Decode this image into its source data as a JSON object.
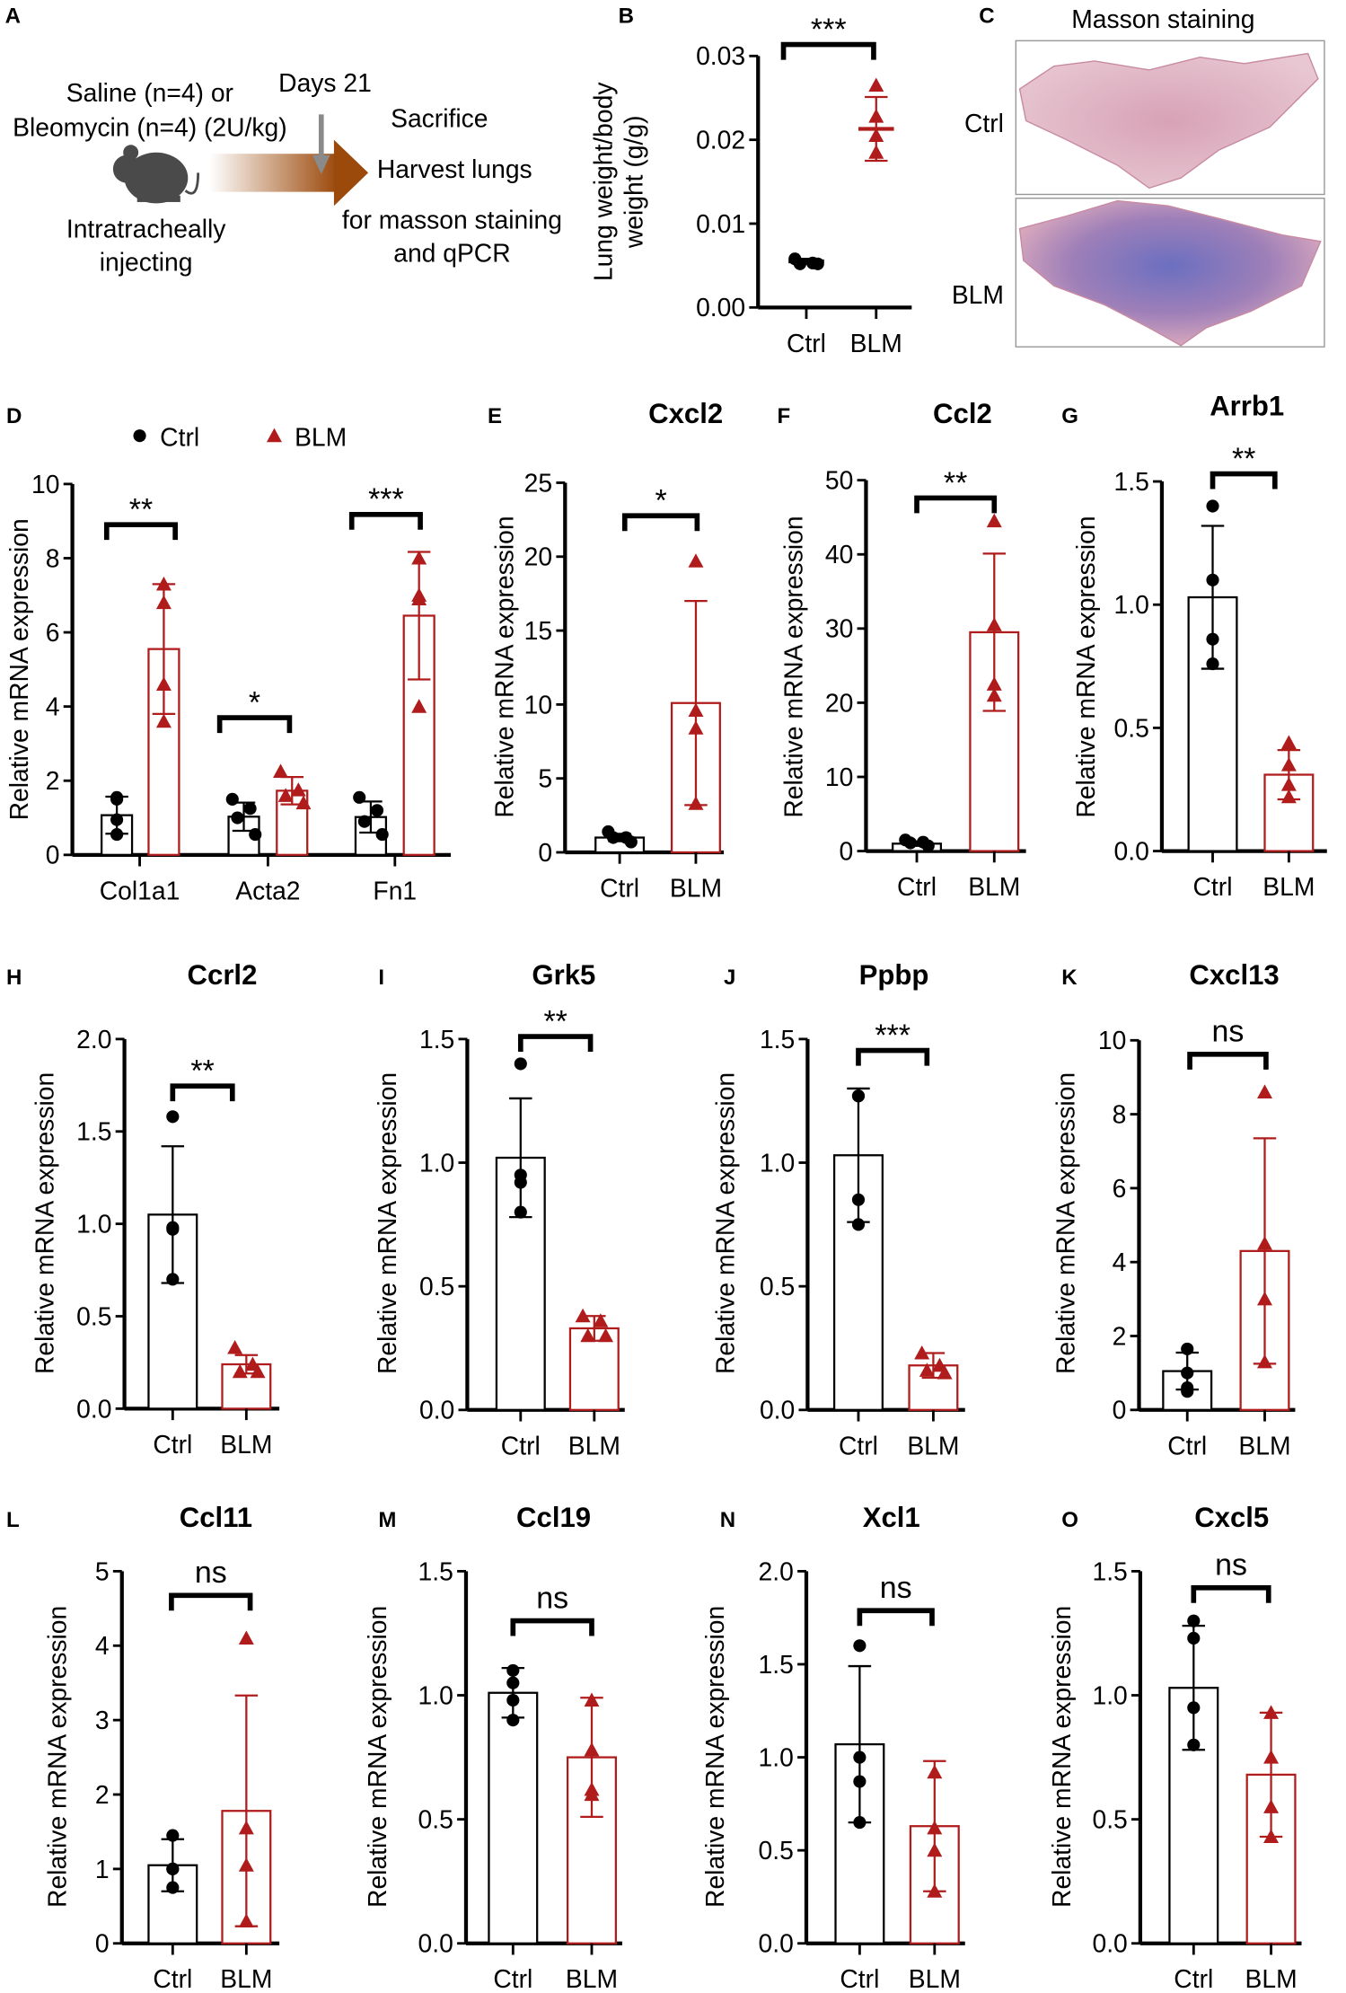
{
  "colors": {
    "ctrl": "#000000",
    "blm": "#b01c1c",
    "arrow": "#9c4a0c"
  },
  "panel_a": {
    "letter": "A",
    "line1": "Saline (n=4) or",
    "line2": "Bleomycin (n=4) (2U/kg)",
    "days": "Days 21",
    "sacrifice": "Sacrifice",
    "harvest": "Harvest lungs",
    "masson": "for masson staining",
    "qpcr": "and qPCR",
    "inj1": "Intratracheally",
    "inj2": "injecting"
  },
  "panel_c": {
    "letter": "C",
    "title": "Masson staining",
    "row1": "Ctrl",
    "row2": "BLM"
  },
  "legend": {
    "ctrl": "Ctrl",
    "blm": "BLM"
  },
  "chart_data": [
    {
      "id": "B",
      "letter": "B",
      "type": "scatter",
      "title": "",
      "ylabel": [
        "Lung weight/body",
        "weight (g/g)"
      ],
      "ylim": [
        0,
        0.03
      ],
      "ticks": [
        "0.00",
        "0.01",
        "0.02",
        "0.03"
      ],
      "groups": [
        {
          "label": "Ctrl",
          "series": "Ctrl",
          "mean": 0.0055,
          "sd": 0.0003,
          "points": [
            0.0058,
            0.0053,
            0.0052,
            0.0052
          ]
        },
        {
          "label": "BLM",
          "series": "BLM",
          "mean": 0.0213,
          "sd": 0.0038,
          "points": [
            0.0265,
            0.0228,
            0.0205,
            0.0185
          ]
        }
      ],
      "sig": [
        "***"
      ]
    },
    {
      "id": "D",
      "letter": "D",
      "type": "bar",
      "title": "",
      "ylabel": [
        "Relative mRNA expression"
      ],
      "ylim": [
        0,
        10
      ],
      "ticks": [
        "0",
        "2",
        "4",
        "6",
        "8",
        "10"
      ],
      "categories": [
        "Col1a1",
        "Acta2",
        "Fn1"
      ],
      "groups": [
        {
          "label": "Col1a1",
          "series": "Ctrl",
          "mean": 1.07,
          "sd": 0.5,
          "points": [
            1.55,
            1.5,
            0.95,
            0.55
          ]
        },
        {
          "label": "",
          "series": "BLM",
          "mean": 5.55,
          "sd": 1.75,
          "points": [
            7.3,
            6.8,
            4.6,
            3.6
          ]
        },
        {
          "label": "Acta2",
          "series": "Ctrl",
          "mean": 1.03,
          "sd": 0.38,
          "points": [
            1.5,
            1.25,
            1.0,
            0.55
          ]
        },
        {
          "label": "",
          "series": "BLM",
          "mean": 1.73,
          "sd": 0.37,
          "points": [
            2.25,
            1.75,
            1.6,
            1.4
          ]
        },
        {
          "label": "Fn1",
          "series": "Ctrl",
          "mean": 1.02,
          "sd": 0.42,
          "points": [
            1.55,
            1.2,
            0.9,
            0.55
          ]
        },
        {
          "label": "",
          "series": "BLM",
          "mean": 6.45,
          "sd": 1.72,
          "points": [
            8.0,
            7.0,
            6.9,
            4.0
          ]
        }
      ],
      "sig": [
        "**",
        "*",
        "***"
      ]
    },
    {
      "id": "E",
      "letter": "E",
      "type": "bar",
      "title": "Cxcl2",
      "ylabel": [
        "Relative mRNA expression"
      ],
      "ylim": [
        0,
        25
      ],
      "ticks": [
        "0",
        "5",
        "10",
        "15",
        "20",
        "25"
      ],
      "groups": [
        {
          "label": "Ctrl",
          "series": "Ctrl",
          "mean": 1.0,
          "sd": 0.25,
          "points": [
            1.4,
            1.0,
            1.0,
            0.7
          ]
        },
        {
          "label": "BLM",
          "series": "BLM",
          "mean": 10.1,
          "sd": 6.9,
          "points": [
            19.7,
            9.6,
            8.4,
            3.3
          ]
        }
      ],
      "sig": [
        "*"
      ]
    },
    {
      "id": "F",
      "letter": "F",
      "type": "bar",
      "title": "Ccl2",
      "ylabel": [
        "Relative mRNA expression"
      ],
      "ylim": [
        0,
        50
      ],
      "ticks": [
        "0",
        "10",
        "20",
        "30",
        "40",
        "50"
      ],
      "groups": [
        {
          "label": "Ctrl",
          "series": "Ctrl",
          "mean": 1.0,
          "sd": 0.3,
          "points": [
            1.5,
            1.2,
            1.1,
            0.7
          ]
        },
        {
          "label": "BLM",
          "series": "BLM",
          "mean": 29.5,
          "sd": 10.6,
          "points": [
            44.5,
            30.5,
            22.5,
            21.0
          ]
        }
      ],
      "sig": [
        "**"
      ]
    },
    {
      "id": "G",
      "letter": "G",
      "type": "bar",
      "title": "Arrb1",
      "ylabel": [
        "Relative mRNA expression"
      ],
      "ylim": [
        0,
        1.5
      ],
      "ticks": [
        "0.0",
        "0.5",
        "1.0",
        "1.5"
      ],
      "groups": [
        {
          "label": "Ctrl",
          "series": "Ctrl",
          "mean": 1.03,
          "sd": 0.29,
          "points": [
            1.4,
            1.1,
            0.86,
            0.76
          ]
        },
        {
          "label": "BLM",
          "series": "BLM",
          "mean": 0.31,
          "sd": 0.1,
          "points": [
            0.44,
            0.35,
            0.27,
            0.22
          ]
        }
      ],
      "sig": [
        "**"
      ]
    },
    {
      "id": "H",
      "letter": "H",
      "type": "bar",
      "title": "Ccrl2",
      "ylabel": [
        "Relative mRNA expression"
      ],
      "ylim": [
        0,
        2.0
      ],
      "ticks": [
        "0.0",
        "0.5",
        "1.0",
        "1.5",
        "2.0"
      ],
      "groups": [
        {
          "label": "Ctrl",
          "series": "Ctrl",
          "mean": 1.05,
          "sd": 0.37,
          "points": [
            1.58,
            0.98,
            0.97,
            0.7
          ]
        },
        {
          "label": "BLM",
          "series": "BLM",
          "mean": 0.24,
          "sd": 0.05,
          "points": [
            0.33,
            0.24,
            0.2,
            0.2
          ]
        }
      ],
      "sig": [
        "**"
      ]
    },
    {
      "id": "I",
      "letter": "I",
      "type": "bar",
      "title": "Grk5",
      "ylabel": [
        "Relative mRNA expression"
      ],
      "ylim": [
        0,
        1.5
      ],
      "ticks": [
        "0.0",
        "0.5",
        "1.0",
        "1.5"
      ],
      "groups": [
        {
          "label": "Ctrl",
          "series": "Ctrl",
          "mean": 1.02,
          "sd": 0.24,
          "points": [
            1.4,
            0.95,
            0.92,
            0.8
          ]
        },
        {
          "label": "BLM",
          "series": "BLM",
          "mean": 0.33,
          "sd": 0.05,
          "points": [
            0.38,
            0.36,
            0.3,
            0.3
          ]
        }
      ],
      "sig": [
        "**"
      ]
    },
    {
      "id": "J",
      "letter": "J",
      "type": "bar",
      "title": "Ppbp",
      "ylabel": [
        "Relative mRNA expression"
      ],
      "ylim": [
        0,
        1.5
      ],
      "ticks": [
        "0.0",
        "0.5",
        "1.0",
        "1.5"
      ],
      "groups": [
        {
          "label": "Ctrl",
          "series": "Ctrl",
          "mean": 1.03,
          "sd": 0.27,
          "points": [
            1.27,
            1.27,
            0.85,
            0.75
          ]
        },
        {
          "label": "BLM",
          "series": "BLM",
          "mean": 0.18,
          "sd": 0.05,
          "points": [
            0.23,
            0.18,
            0.16,
            0.15
          ]
        }
      ],
      "sig": [
        "***"
      ]
    },
    {
      "id": "K",
      "letter": "K",
      "type": "bar",
      "title": "Cxcl13",
      "ylabel": [
        "Relative mRNA expression"
      ],
      "ylim": [
        0,
        10
      ],
      "ticks": [
        "0",
        "2",
        "4",
        "6",
        "8",
        "10"
      ],
      "groups": [
        {
          "label": "Ctrl",
          "series": "Ctrl",
          "mean": 1.05,
          "sd": 0.5,
          "points": [
            1.65,
            1.0,
            0.6,
            0.5
          ]
        },
        {
          "label": "BLM",
          "series": "BLM",
          "mean": 4.3,
          "sd": 3.05,
          "points": [
            8.6,
            4.5,
            3.0,
            1.3
          ]
        }
      ],
      "sig": [
        "ns"
      ]
    },
    {
      "id": "L",
      "letter": "L",
      "type": "bar",
      "title": "Ccl11",
      "ylabel": [
        "Relative mRNA expression"
      ],
      "ylim": [
        0,
        5
      ],
      "ticks": [
        "0",
        "1",
        "2",
        "3",
        "4",
        "5"
      ],
      "groups": [
        {
          "label": "Ctrl",
          "series": "Ctrl",
          "mean": 1.05,
          "sd": 0.35,
          "points": [
            1.45,
            1.0,
            1.0,
            0.75
          ]
        },
        {
          "label": "BLM",
          "series": "BLM",
          "mean": 1.78,
          "sd": 1.55,
          "points": [
            4.1,
            1.55,
            1.05,
            0.3
          ]
        }
      ],
      "sig": [
        "ns"
      ]
    },
    {
      "id": "M",
      "letter": "M",
      "type": "bar",
      "title": "Ccl19",
      "ylabel": [
        "Relative mRNA expression"
      ],
      "ylim": [
        0,
        1.5
      ],
      "ticks": [
        "0.0",
        "0.5",
        "1.0",
        "1.5"
      ],
      "groups": [
        {
          "label": "Ctrl",
          "series": "Ctrl",
          "mean": 1.01,
          "sd": 0.1,
          "points": [
            1.1,
            1.05,
            0.98,
            0.9
          ]
        },
        {
          "label": "BLM",
          "series": "BLM",
          "mean": 0.75,
          "sd": 0.24,
          "points": [
            0.98,
            0.78,
            0.62,
            0.6
          ]
        }
      ],
      "sig": [
        "ns"
      ]
    },
    {
      "id": "N",
      "letter": "N",
      "type": "bar",
      "title": "Xcl1",
      "ylabel": [
        "Relative mRNA expression"
      ],
      "ylim": [
        0,
        2.0
      ],
      "ticks": [
        "0.0",
        "0.5",
        "1.0",
        "1.5",
        "2.0"
      ],
      "groups": [
        {
          "label": "Ctrl",
          "series": "Ctrl",
          "mean": 1.07,
          "sd": 0.42,
          "points": [
            1.6,
            1.0,
            0.87,
            0.65
          ]
        },
        {
          "label": "BLM",
          "series": "BLM",
          "mean": 0.63,
          "sd": 0.35,
          "points": [
            0.92,
            0.62,
            0.5,
            0.28
          ]
        }
      ],
      "sig": [
        "ns"
      ]
    },
    {
      "id": "O",
      "letter": "O",
      "type": "bar",
      "title": "Cxcl5",
      "ylabel": [
        "Relative mRNA expression"
      ],
      "ylim": [
        0,
        1.5
      ],
      "ticks": [
        "0.0",
        "0.5",
        "1.0",
        "1.5"
      ],
      "groups": [
        {
          "label": "Ctrl",
          "series": "Ctrl",
          "mean": 1.03,
          "sd": 0.25,
          "points": [
            1.3,
            1.23,
            0.95,
            0.8
          ]
        },
        {
          "label": "BLM",
          "series": "BLM",
          "mean": 0.68,
          "sd": 0.25,
          "points": [
            0.93,
            0.75,
            0.55,
            0.43
          ]
        }
      ],
      "sig": [
        "ns"
      ]
    }
  ]
}
